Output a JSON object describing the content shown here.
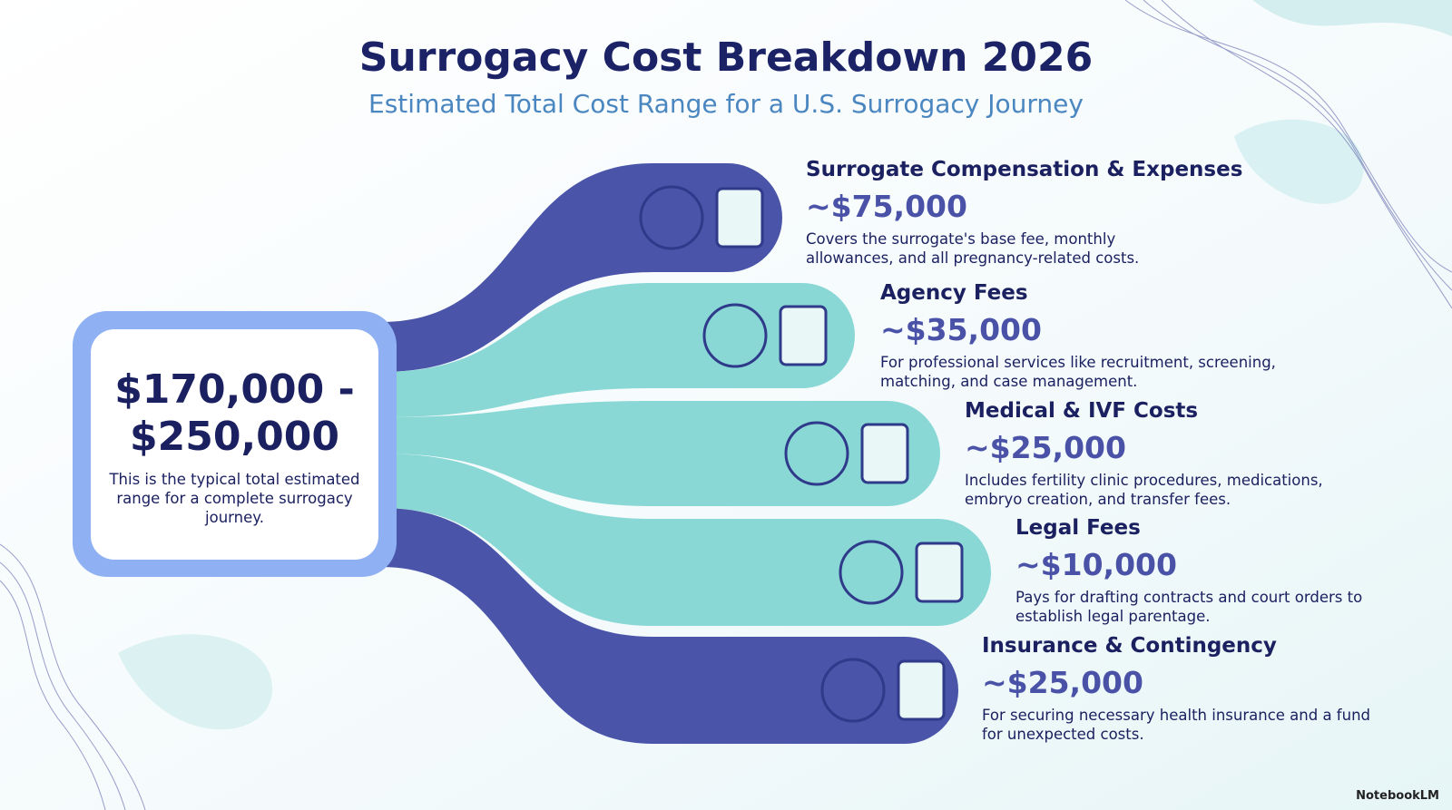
{
  "header": {
    "title": "Surrogacy Cost Breakdown 2026",
    "subtitle": "Estimated Total Cost Range for a U.S. Surrogacy Journey"
  },
  "summary": {
    "range_line1": "$170,000 -",
    "range_line2": "$250,000",
    "description": "This is the typical total estimated range for a complete surrogacy journey."
  },
  "items": [
    {
      "title": "Surrogate Compensation & Expenses",
      "amount": "~$75,000",
      "description": "Covers the surrogate's base fee, monthly allowances, and all pregnancy-related costs."
    },
    {
      "title": "Agency Fees",
      "amount": "~$35,000",
      "description": "For professional services like recruitment, screening, matching, and case management."
    },
    {
      "title": "Medical & IVF Costs",
      "amount": "~$25,000",
      "description": "Includes fertility clinic procedures, medications, embryo creation, and transfer fees."
    },
    {
      "title": "Legal Fees",
      "amount": "~$10,000",
      "description": "Pays for drafting contracts and court orders to establish legal parentage."
    },
    {
      "title": "Insurance & Contingency",
      "amount": "~$25,000",
      "description": "For securing necessary health insurance and a fund for unexpected costs."
    }
  ],
  "footer": {
    "brand": "NotebookLM"
  }
}
